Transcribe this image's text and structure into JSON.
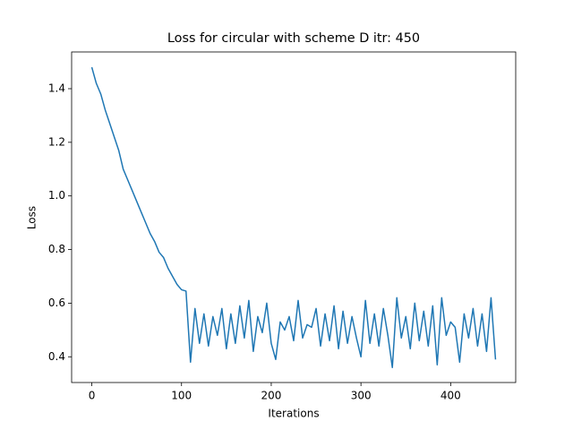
{
  "chart_data": {
    "type": "line",
    "title": "Loss for circular with scheme D itr: 450",
    "x_label": "Iterations",
    "y_label": "Loss",
    "x": [
      0,
      5,
      10,
      15,
      20,
      25,
      30,
      35,
      40,
      45,
      50,
      55,
      60,
      65,
      70,
      75,
      80,
      85,
      90,
      95,
      100,
      105,
      110,
      115,
      120,
      125,
      130,
      135,
      140,
      145,
      150,
      155,
      160,
      165,
      170,
      175,
      180,
      185,
      190,
      195,
      200,
      205,
      210,
      215,
      220,
      225,
      230,
      235,
      240,
      245,
      250,
      255,
      260,
      265,
      270,
      275,
      280,
      285,
      290,
      295,
      300,
      305,
      310,
      315,
      320,
      325,
      330,
      335,
      340,
      345,
      350,
      355,
      360,
      365,
      370,
      375,
      380,
      385,
      390,
      395,
      400,
      405,
      410,
      415,
      420,
      425,
      430,
      435,
      440,
      445,
      450
    ],
    "series": [
      {
        "color": "#1f77b4",
        "values": [
          1.48,
          1.42,
          1.38,
          1.32,
          1.27,
          1.22,
          1.17,
          1.1,
          1.06,
          1.02,
          0.98,
          0.94,
          0.9,
          0.86,
          0.83,
          0.79,
          0.77,
          0.73,
          0.7,
          0.67,
          0.65,
          0.645,
          0.38,
          0.58,
          0.45,
          0.56,
          0.44,
          0.55,
          0.48,
          0.58,
          0.43,
          0.56,
          0.45,
          0.59,
          0.47,
          0.61,
          0.42,
          0.55,
          0.49,
          0.6,
          0.45,
          0.39,
          0.53,
          0.5,
          0.55,
          0.46,
          0.61,
          0.47,
          0.52,
          0.51,
          0.58,
          0.44,
          0.56,
          0.46,
          0.59,
          0.43,
          0.57,
          0.45,
          0.55,
          0.47,
          0.4,
          0.61,
          0.45,
          0.56,
          0.44,
          0.58,
          0.48,
          0.36,
          0.62,
          0.47,
          0.55,
          0.43,
          0.6,
          0.46,
          0.57,
          0.44,
          0.59,
          0.37,
          0.62,
          0.48,
          0.53,
          0.51,
          0.38,
          0.56,
          0.47,
          0.58,
          0.44,
          0.56,
          0.42,
          0.62,
          0.39
        ]
      }
    ],
    "xlim": [
      -22.5,
      472.5
    ],
    "xticks": [
      0,
      100,
      200,
      300,
      400
    ],
    "ylim": [
      0.304,
      1.537
    ],
    "yticks": [
      0.4,
      0.6,
      0.8,
      {
        "value": 1,
        "label": "1.0"
      },
      1.2,
      1.4
    ]
  }
}
